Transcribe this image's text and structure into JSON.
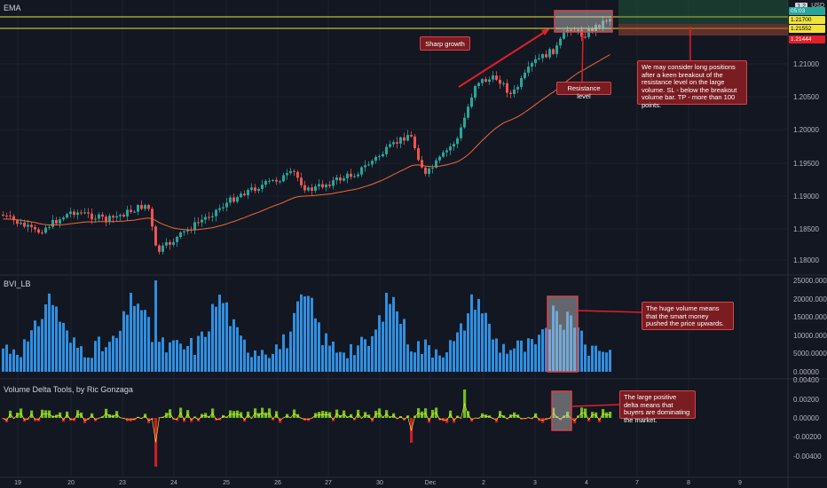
{
  "panes": {
    "price": {
      "title": "EMA"
    },
    "volume": {
      "title": "BVI_LB"
    },
    "delta": {
      "title": "Volume Delta Tools, by Ric Gonzaga"
    }
  },
  "currency": "USD",
  "scale_badge": "1.2",
  "price_axis": [
    "1.21000",
    "1.20500",
    "1.20000",
    "1.19500",
    "1.19000",
    "1.18500",
    "1.18000"
  ],
  "price_tags": [
    {
      "text": "05:03",
      "bg": "#26a69a",
      "fg": "#ffffff"
    },
    {
      "text": "1.21700",
      "bg": "#f2e33b",
      "fg": "#000000"
    },
    {
      "text": "1.21552",
      "bg": "#f2e33b",
      "fg": "#000000"
    },
    {
      "text": "1.21444",
      "bg": "#e01f26",
      "fg": "#ffffff"
    }
  ],
  "volume_axis": [
    "25000.00000",
    "20000.00000",
    "15000.00000",
    "10000.00000",
    "5000.00000",
    "0.00000"
  ],
  "delta_axis": [
    "0.00400",
    "0.00200",
    "0.00000",
    "-0.00200",
    "-0.00400"
  ],
  "time_axis": [
    "19",
    "20",
    "23",
    "24",
    "25",
    "26",
    "27",
    "30",
    "Dec",
    "2",
    "3",
    "4",
    "7",
    "8",
    "9"
  ],
  "annotations": {
    "sharp_growth": "Sharp growth",
    "resistance": "Resistance level",
    "long_positions": "We may consider long positions after a keen breakout of the resistance level on the large volume. SL - below the breakout volume bar. TP - more than 100 points.",
    "huge_volume": "The huge volume means that the smart money pushed the price upwards.",
    "positive_delta": "The large positive delta means that buyers are dominating the market."
  },
  "colors": {
    "background": "#131722",
    "up_candle": "#26a69a",
    "down_candle": "#ef5350",
    "ema": "#f0683a",
    "volume_bar": "#2f8fe0",
    "resistance_line": "#f2e33b",
    "annotation_fill": "#7a1d22",
    "annotation_border": "#d9424a",
    "delta_positive": "#7cd11e",
    "delta_negative": "#e01f26"
  }
}
